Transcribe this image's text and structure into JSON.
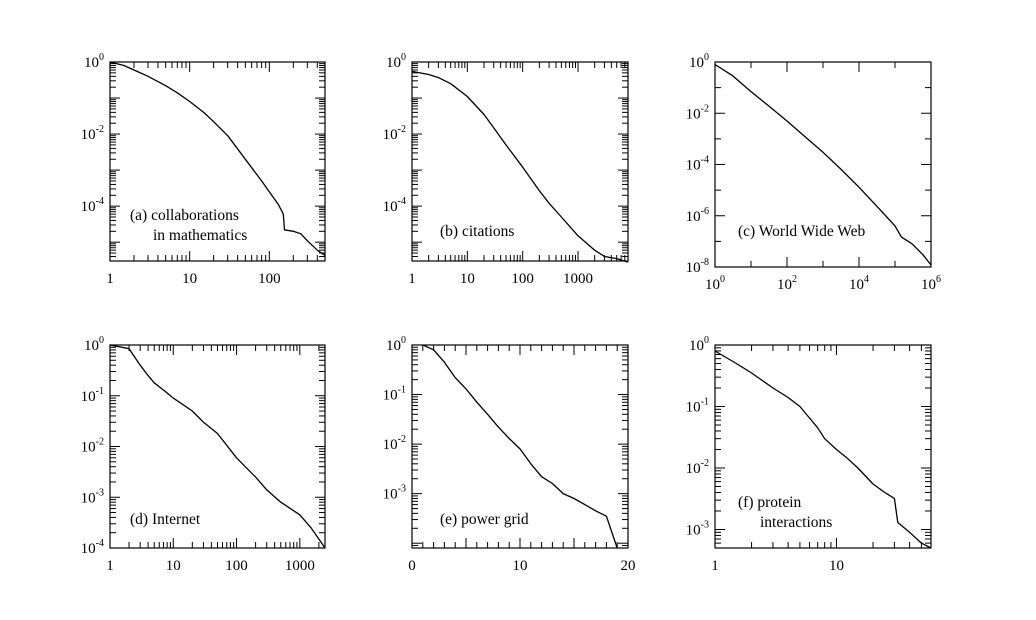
{
  "chart_data": [
    {
      "type": "line",
      "label_lines": [
        "(a) collaborations",
        "in mathematics"
      ],
      "xscale": "log",
      "yscale": "log",
      "xlim": [
        1,
        500
      ],
      "ylim": [
        3e-06,
        1
      ],
      "xticks": [
        {
          "v": 1,
          "text": "1"
        },
        {
          "v": 10,
          "text": "10"
        },
        {
          "v": 100,
          "text": "100"
        }
      ],
      "yticks": [
        {
          "v": 1,
          "base": "10",
          "exp": "0"
        },
        {
          "v": 0.01,
          "base": "10",
          "exp": "-2"
        },
        {
          "v": 0.0001,
          "base": "10",
          "exp": "-4"
        }
      ],
      "series": [
        {
          "x": [
            1,
            1.5,
            2,
            3,
            5,
            7,
            10,
            15,
            20,
            30,
            50,
            80,
            100,
            130,
            150,
            155,
            200,
            250,
            300,
            400,
            500
          ],
          "y": [
            1,
            0.8,
            0.6,
            0.4,
            0.22,
            0.14,
            0.08,
            0.04,
            0.022,
            0.009,
            0.002,
            0.0005,
            0.00025,
            0.00011,
            6e-05,
            2.2e-05,
            2e-05,
            1.7e-05,
            1.1e-05,
            6e-06,
            4.3e-06
          ]
        }
      ]
    },
    {
      "type": "line",
      "label_lines": [
        "(b) citations"
      ],
      "xscale": "log",
      "yscale": "log",
      "xlim": [
        1,
        8000
      ],
      "ylim": [
        3e-06,
        1
      ],
      "xticks": [
        {
          "v": 1,
          "text": "1"
        },
        {
          "v": 10,
          "text": "10"
        },
        {
          "v": 100,
          "text": "100"
        },
        {
          "v": 1000,
          "text": "1000"
        }
      ],
      "yticks": [
        {
          "v": 1,
          "base": "10",
          "exp": "0"
        },
        {
          "v": 0.01,
          "base": "10",
          "exp": "-2"
        },
        {
          "v": 0.0001,
          "base": "10",
          "exp": "-4"
        }
      ],
      "series": [
        {
          "x": [
            1,
            2,
            3,
            5,
            10,
            20,
            30,
            50,
            100,
            200,
            300,
            500,
            1000,
            2000,
            3000,
            5000,
            8000
          ],
          "y": [
            0.55,
            0.45,
            0.37,
            0.25,
            0.11,
            0.035,
            0.015,
            0.005,
            0.0012,
            0.00027,
            0.00012,
            5e-05,
            1.5e-05,
            6e-06,
            4e-06,
            3.5e-06,
            2.8e-06
          ]
        }
      ]
    },
    {
      "type": "line",
      "label_lines": [
        "(c) World Wide Web"
      ],
      "xscale": "log",
      "yscale": "log",
      "xlim": [
        1,
        1000000
      ],
      "ylim": [
        1e-08,
        1
      ],
      "xticks": [
        {
          "v": 1,
          "base": "10",
          "exp": "0"
        },
        {
          "v": 100,
          "base": "10",
          "exp": "2"
        },
        {
          "v": 10000,
          "base": "10",
          "exp": "4"
        },
        {
          "v": 1000000,
          "base": "10",
          "exp": "6"
        }
      ],
      "yticks": [
        {
          "v": 1,
          "base": "10",
          "exp": "0"
        },
        {
          "v": 0.01,
          "base": "10",
          "exp": "-2"
        },
        {
          "v": 0.0001,
          "base": "10",
          "exp": "-4"
        },
        {
          "v": 1e-06,
          "base": "10",
          "exp": "-6"
        },
        {
          "v": 1e-08,
          "base": "10",
          "exp": "-8"
        }
      ],
      "series": [
        {
          "x": [
            1,
            3,
            10,
            30,
            100,
            300,
            1000,
            3000,
            10000,
            30000,
            100000,
            150000,
            300000,
            600000,
            1000000
          ],
          "y": [
            0.8,
            0.3,
            0.07,
            0.02,
            0.005,
            0.0013,
            0.0003,
            7e-05,
            1.3e-05,
            2.5e-06,
            4e-07,
            1.5e-07,
            8e-08,
            3e-08,
            1.2e-08
          ]
        }
      ]
    },
    {
      "type": "line",
      "label_lines": [
        "(d) Internet"
      ],
      "xscale": "log",
      "yscale": "log",
      "xlim": [
        1,
        2500
      ],
      "ylim": [
        0.0001,
        1
      ],
      "xticks": [
        {
          "v": 1,
          "text": "1"
        },
        {
          "v": 10,
          "text": "10"
        },
        {
          "v": 100,
          "text": "100"
        },
        {
          "v": 1000,
          "text": "1000"
        }
      ],
      "yticks": [
        {
          "v": 1,
          "base": "10",
          "exp": "0"
        },
        {
          "v": 0.1,
          "base": "10",
          "exp": "-1"
        },
        {
          "v": 0.01,
          "base": "10",
          "exp": "-2"
        },
        {
          "v": 0.001,
          "base": "10",
          "exp": "-3"
        },
        {
          "v": 0.0001,
          "base": "10",
          "exp": "-4"
        }
      ],
      "series": [
        {
          "x": [
            1,
            2,
            3,
            4,
            5,
            7,
            10,
            20,
            30,
            50,
            100,
            200,
            300,
            500,
            1000,
            1500,
            2000,
            2500
          ],
          "y": [
            1,
            0.85,
            0.4,
            0.25,
            0.18,
            0.13,
            0.09,
            0.05,
            0.03,
            0.018,
            0.006,
            0.0025,
            0.0014,
            0.0008,
            0.00045,
            0.00025,
            0.00015,
            0.0001
          ]
        }
      ]
    },
    {
      "type": "line",
      "label_lines": [
        "(e) power grid"
      ],
      "xscale": "linear",
      "yscale": "log",
      "xlim": [
        0,
        20
      ],
      "ylim": [
        8e-05,
        1
      ],
      "xticks": [
        {
          "v": 0,
          "text": "0"
        },
        {
          "v": 10,
          "text": "10"
        },
        {
          "v": 20,
          "text": "20"
        }
      ],
      "yticks": [
        {
          "v": 1,
          "base": "10",
          "exp": "0"
        },
        {
          "v": 0.1,
          "base": "10",
          "exp": "-1"
        },
        {
          "v": 0.01,
          "base": "10",
          "exp": "-2"
        },
        {
          "v": 0.001,
          "base": "10",
          "exp": "-3"
        }
      ],
      "series": [
        {
          "x": [
            1,
            2,
            3,
            4,
            5,
            6,
            7,
            8,
            9,
            10,
            11,
            12,
            13,
            14,
            15,
            16,
            17,
            18,
            19
          ],
          "y": [
            1,
            0.8,
            0.45,
            0.22,
            0.13,
            0.07,
            0.04,
            0.022,
            0.013,
            0.008,
            0.004,
            0.0022,
            0.0016,
            0.001,
            0.0008,
            0.0006,
            0.00045,
            0.00035,
            8e-05
          ]
        }
      ]
    },
    {
      "type": "line",
      "label_lines": [
        "(f) protein",
        "interactions"
      ],
      "xscale": "log",
      "yscale": "log",
      "xlim": [
        1,
        60
      ],
      "ylim": [
        0.0005,
        1
      ],
      "xticks": [
        {
          "v": 1,
          "text": "1"
        },
        {
          "v": 10,
          "text": "10"
        }
      ],
      "yticks": [
        {
          "v": 1,
          "base": "10",
          "exp": "0"
        },
        {
          "v": 0.1,
          "base": "10",
          "exp": "-1"
        },
        {
          "v": 0.01,
          "base": "10",
          "exp": "-2"
        },
        {
          "v": 0.001,
          "base": "10",
          "exp": "-3"
        }
      ],
      "series": [
        {
          "x": [
            1,
            1.5,
            2,
            3,
            4,
            5,
            6,
            7,
            8,
            10,
            12,
            15,
            20,
            25,
            30,
            32,
            40,
            50,
            60
          ],
          "y": [
            0.8,
            0.5,
            0.35,
            0.2,
            0.14,
            0.1,
            0.065,
            0.045,
            0.03,
            0.02,
            0.015,
            0.01,
            0.0055,
            0.004,
            0.0032,
            0.0013,
            0.0009,
            0.0006,
            0.0005
          ]
        }
      ]
    }
  ]
}
